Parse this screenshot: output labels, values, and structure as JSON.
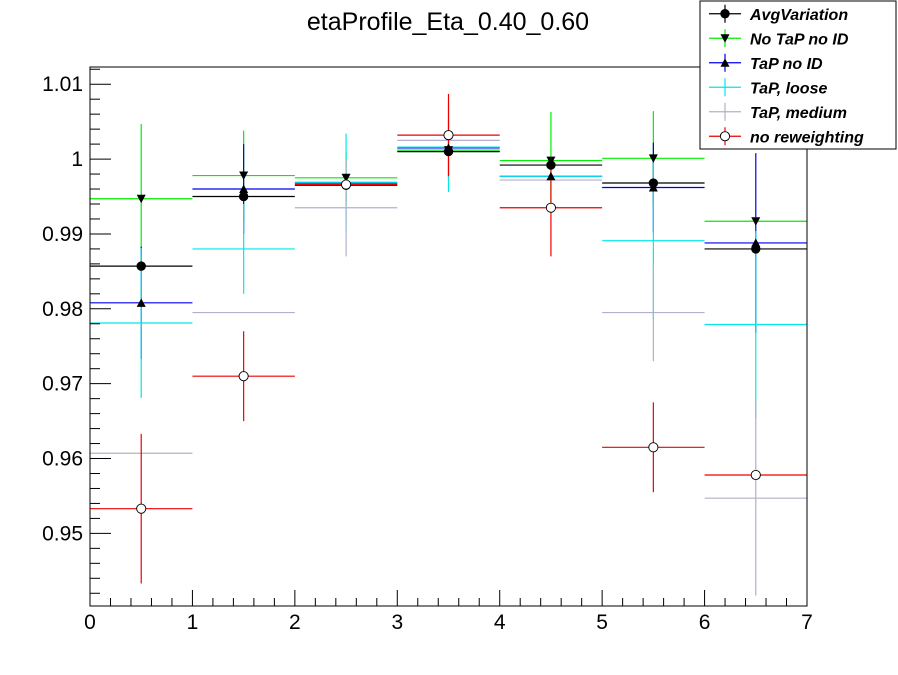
{
  "chart_data": {
    "type": "scatter",
    "title": "etaProfile_Eta_0.40_0.60",
    "xlabel": "",
    "ylabel": "",
    "xlim": [
      0,
      7
    ],
    "ylim": [
      0.9403,
      1.0123
    ],
    "x_ticks": [
      0,
      1,
      2,
      3,
      4,
      5,
      6,
      7
    ],
    "y_ticks": [
      0.95,
      0.96,
      0.97,
      0.98,
      0.99,
      1.0,
      1.01
    ],
    "y_tick_labels": [
      "0.95",
      "0.96",
      "0.97",
      "0.98",
      "0.99",
      "1",
      "1.01"
    ],
    "grid": false,
    "legend_position": "top-right",
    "bin_centers": [
      0.5,
      1.5,
      2.5,
      3.5,
      4.5,
      5.5,
      6.5
    ],
    "bin_half_width": 0.5,
    "series": [
      {
        "name": "AvgVariation",
        "color": "#000000",
        "marker": "circle-filled",
        "values": [
          0.9857,
          0.995,
          0.9965,
          1.001,
          0.9992,
          0.9968,
          0.988
        ],
        "yerr": [
          0.0,
          0.0,
          0.0,
          0.0,
          0.0,
          0.0,
          0.0
        ]
      },
      {
        "name": "No TaP no ID",
        "color": "#00ee00",
        "marker": "triangle-down",
        "values": [
          0.9947,
          0.9978,
          0.9975,
          1.0012,
          0.9998,
          1.0001,
          0.9917
        ],
        "yerr": [
          0.01,
          0.006,
          0.0035,
          0.004,
          0.0065,
          0.0063,
          0.0
        ]
      },
      {
        "name": "TaP no ID",
        "color": "#0000ee",
        "marker": "triangle-up",
        "values": [
          0.9808,
          0.996,
          0.9968,
          1.0015,
          0.9977,
          0.9962,
          0.9888
        ],
        "yerr": [
          0.0075,
          0.006,
          0.0,
          0.0,
          0.0,
          0.006,
          0.012
        ]
      },
      {
        "name": "TaP, loose",
        "color": "#00e8e8",
        "marker": "none",
        "values": [
          0.9781,
          0.988,
          0.9969,
          1.0016,
          0.9977,
          0.9891,
          0.9779
        ],
        "yerr": [
          0.01,
          0.006,
          0.0065,
          0.006,
          0.0,
          0.0105,
          0.0125
        ]
      },
      {
        "name": "TaP, medium",
        "color": "#b0b0cc",
        "marker": "none",
        "values": [
          0.9607,
          0.9795,
          0.9935,
          1.0025,
          0.9972,
          0.9795,
          0.9547
        ],
        "yerr": [
          0.0,
          0.0,
          0.0065,
          0.0,
          0.0,
          0.0065,
          0.013
        ]
      },
      {
        "name": "no reweighting",
        "color": "#ee0000",
        "marker": "circle-open",
        "values": [
          0.9533,
          0.971,
          0.9966,
          1.0032,
          0.9935,
          0.9615,
          0.9578
        ],
        "yerr": [
          0.01,
          0.006,
          0.0,
          0.0055,
          0.0065,
          0.006,
          0.0
        ]
      }
    ]
  }
}
